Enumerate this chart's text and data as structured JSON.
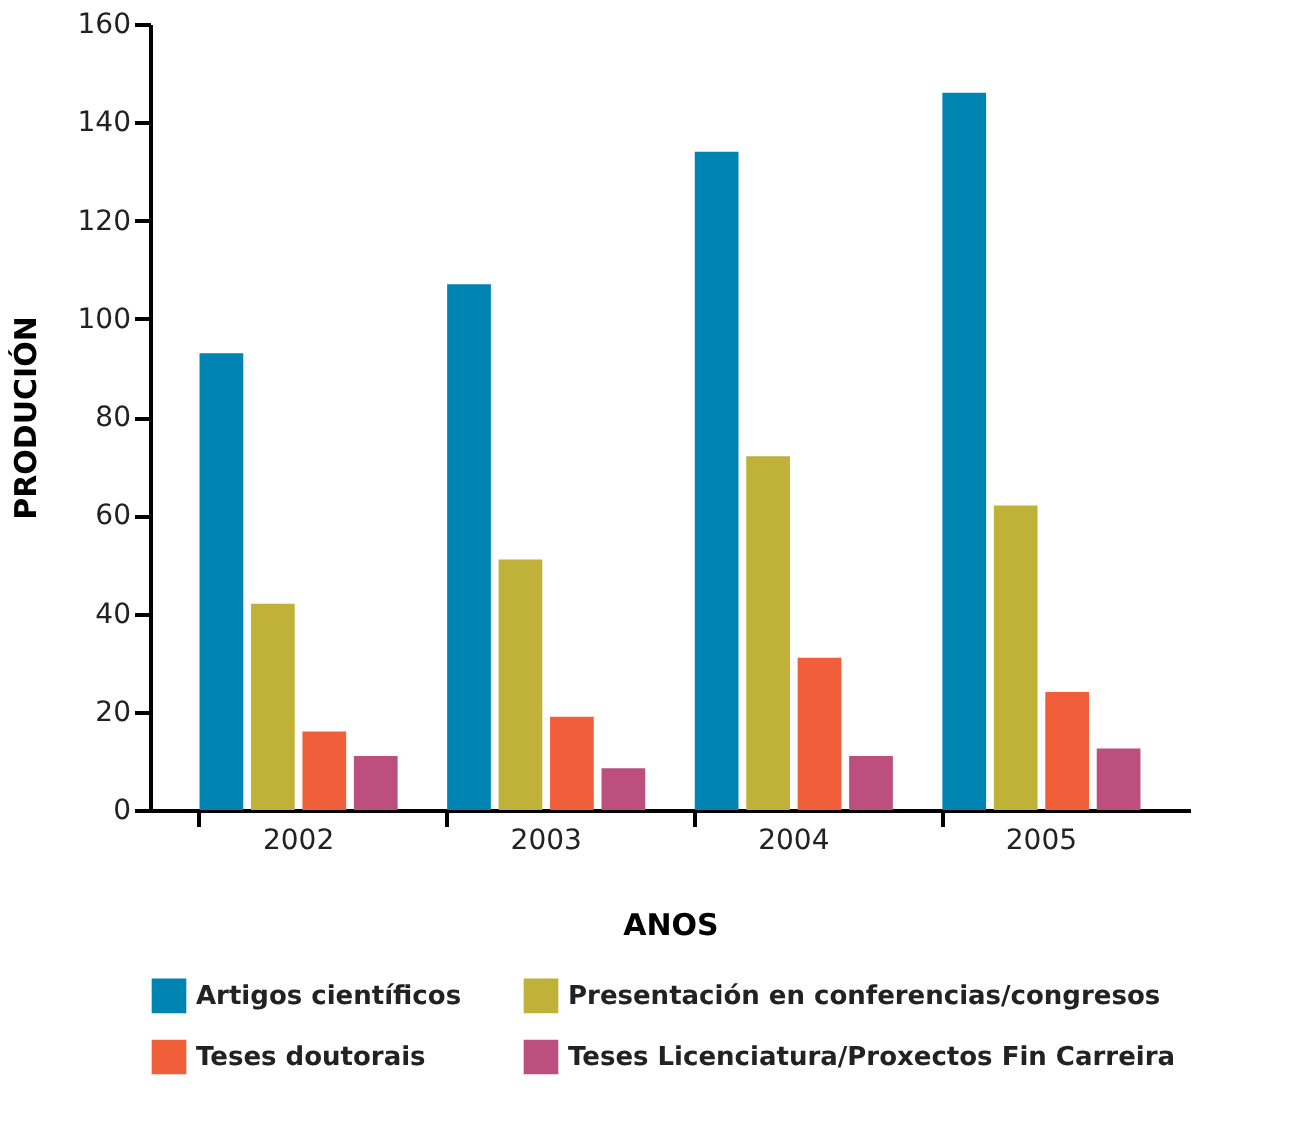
{
  "chart_data": {
    "type": "bar",
    "xlabel": "ANOS",
    "ylabel": "PRODUCIÓN",
    "categories": [
      "2002",
      "2003",
      "2004",
      "2005"
    ],
    "series": [
      {
        "name": "Artigos científicos",
        "color": "#0085b2",
        "values": [
          93,
          107,
          134,
          146
        ]
      },
      {
        "name": "Presentación en conferencias/congresos",
        "color": "#c0b138",
        "values": [
          42,
          51,
          72,
          62
        ]
      },
      {
        "name": "Teses doutorais",
        "color": "#f05e3a",
        "values": [
          16,
          19,
          31,
          24
        ]
      },
      {
        "name": "Teses Licenciatura/Proxectos Fin Carreira",
        "color": "#bd4f7e",
        "values": [
          11,
          8.5,
          11,
          12.5
        ]
      }
    ],
    "ylim": [
      0,
      160
    ],
    "yticks": [
      0,
      20,
      40,
      60,
      80,
      100,
      120,
      140,
      160
    ],
    "grid": false,
    "legend": "bottom"
  }
}
